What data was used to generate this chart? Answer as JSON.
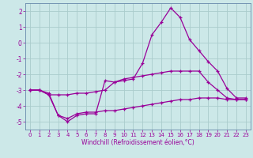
{
  "title": "",
  "xlabel": "Windchill (Refroidissement éolien,°C)",
  "ylabel": "",
  "background_color": "#cce8e8",
  "grid_color": "#aacccc",
  "line_color": "#990099",
  "spine_color": "#6688aa",
  "xlim": [
    -0.5,
    23.5
  ],
  "ylim": [
    -5.5,
    2.5
  ],
  "xticks": [
    0,
    1,
    2,
    3,
    4,
    5,
    6,
    7,
    8,
    9,
    10,
    11,
    12,
    13,
    14,
    15,
    16,
    17,
    18,
    19,
    20,
    21,
    22,
    23
  ],
  "yticks": [
    -5,
    -4,
    -3,
    -2,
    -1,
    0,
    1,
    2
  ],
  "series": [
    {
      "x": [
        0,
        1,
        2,
        3,
        4,
        5,
        6,
        7,
        8,
        9,
        10,
        11,
        12,
        13,
        14,
        15,
        16,
        17,
        18,
        19,
        20,
        21,
        22,
        23
      ],
      "y": [
        -3.0,
        -3.0,
        -3.3,
        -3.3,
        -3.3,
        -3.2,
        -3.2,
        -3.1,
        -3.0,
        -2.5,
        -2.3,
        -2.2,
        -2.1,
        -2.0,
        -1.9,
        -1.8,
        -1.8,
        -1.8,
        -1.8,
        -2.5,
        -3.0,
        -3.5,
        -3.6,
        -3.6
      ]
    },
    {
      "x": [
        0,
        1,
        2,
        3,
        4,
        5,
        6,
        7,
        8,
        9,
        10,
        11,
        12,
        13,
        14,
        15,
        16,
        17,
        18,
        19,
        20,
        21,
        22,
        23
      ],
      "y": [
        -3.0,
        -3.0,
        -3.2,
        -4.6,
        -4.8,
        -4.5,
        -4.4,
        -4.4,
        -4.3,
        -4.3,
        -4.2,
        -4.1,
        -4.0,
        -3.9,
        -3.8,
        -3.7,
        -3.6,
        -3.6,
        -3.5,
        -3.5,
        -3.5,
        -3.6,
        -3.6,
        -3.6
      ]
    },
    {
      "x": [
        0,
        1,
        2,
        3,
        4,
        5,
        6,
        7,
        8,
        9,
        10,
        11,
        12,
        13,
        14,
        15,
        16,
        17,
        18,
        19,
        20,
        21,
        22,
        23
      ],
      "y": [
        -3.0,
        -3.0,
        -3.3,
        -4.6,
        -5.0,
        -4.6,
        -4.5,
        -4.5,
        -2.4,
        -2.5,
        -2.4,
        -2.3,
        -1.3,
        0.5,
        1.3,
        2.2,
        1.6,
        0.2,
        -0.5,
        -1.2,
        -1.8,
        -2.9,
        -3.5,
        -3.5
      ]
    }
  ]
}
